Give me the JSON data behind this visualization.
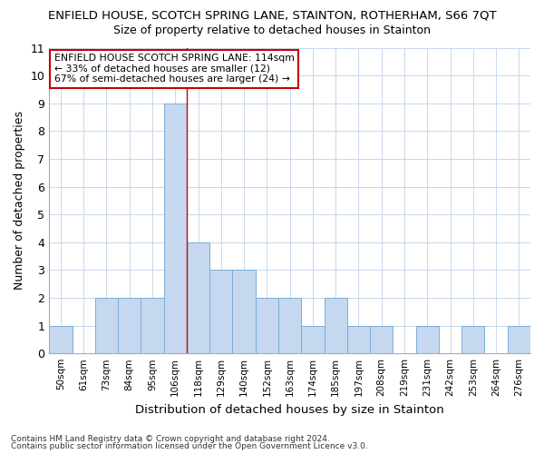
{
  "title_line1": "ENFIELD HOUSE, SCOTCH SPRING LANE, STAINTON, ROTHERHAM, S66 7QT",
  "title_line2": "Size of property relative to detached houses in Stainton",
  "xlabel": "Distribution of detached houses by size in Stainton",
  "ylabel": "Number of detached properties",
  "categories": [
    "50sqm",
    "61sqm",
    "73sqm",
    "84sqm",
    "95sqm",
    "106sqm",
    "118sqm",
    "129sqm",
    "140sqm",
    "152sqm",
    "163sqm",
    "174sqm",
    "185sqm",
    "197sqm",
    "208sqm",
    "219sqm",
    "231sqm",
    "242sqm",
    "253sqm",
    "264sqm",
    "276sqm"
  ],
  "values": [
    1,
    0,
    2,
    2,
    2,
    9,
    4,
    3,
    3,
    2,
    2,
    1,
    2,
    1,
    1,
    0,
    1,
    0,
    1,
    0,
    1
  ],
  "bar_color": "#c5d8f0",
  "bar_edge_color": "#7aadd4",
  "grid_color": "#c8d8ec",
  "annotation_box_edge_color": "#cc0000",
  "annotation_line1": "ENFIELD HOUSE SCOTCH SPRING LANE: 114sqm",
  "annotation_line2": "← 33% of detached houses are smaller (12)",
  "annotation_line3": "67% of semi-detached houses are larger (24) →",
  "vline_color": "#cc0000",
  "vline_x_index": 5.5,
  "ylim": [
    0,
    11
  ],
  "yticks": [
    0,
    1,
    2,
    3,
    4,
    5,
    6,
    7,
    8,
    9,
    10,
    11
  ],
  "footer_line1": "Contains HM Land Registry data © Crown copyright and database right 2024.",
  "footer_line2": "Contains public sector information licensed under the Open Government Licence v3.0.",
  "background_color": "#ffffff",
  "plot_bg_color": "#ffffff"
}
